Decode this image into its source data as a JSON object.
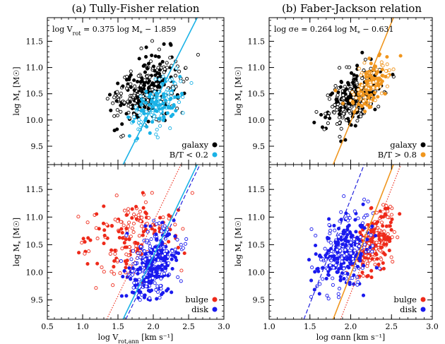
{
  "figure": {
    "panel_a_title": "(a) Tully-Fisher relation",
    "panel_b_title": "(b) Faber-Jackson relation"
  },
  "chart_data": [
    {
      "id": "a-top",
      "type": "scatter",
      "ylabel": "log M* [M☉]",
      "xlim": [
        0.5,
        3.0
      ],
      "ylim": [
        9.15,
        11.95
      ],
      "xticks": [
        "0.5",
        "1.0",
        "1.5",
        "2.0",
        "2.5",
        "3.0"
      ],
      "yticks": [
        "9.5",
        "10.0",
        "10.5",
        "11.0",
        "11.5"
      ],
      "show_xtick_labels": false,
      "annotation": "log V_rot = 0.375 log M* − 1.859",
      "fit": {
        "slope": 0.375,
        "intercept": -1.859,
        "axis": "x_from_y",
        "color": "#1ab2e6",
        "style": "solid"
      },
      "dashed_fits": [],
      "legend": {
        "entries": [
          "galaxy",
          "B/T < 0.2"
        ],
        "colors": [
          "#000000",
          "#1ab2e6"
        ],
        "position": "bottom-right"
      },
      "series": [
        {
          "name": "galaxy",
          "color": "#000000",
          "cluster": {
            "x_mean": 1.9,
            "x_sd": 0.22,
            "slope": 1.9,
            "y_center": 10.55,
            "y_sd": 0.18,
            "y_min": 9.5,
            "y_max": 11.55,
            "n": 300,
            "seed": 11
          }
        },
        {
          "name": "B/T < 0.2",
          "color": "#1ab2e6",
          "cluster": {
            "x_mean": 2.05,
            "x_sd": 0.18,
            "slope": 2.2,
            "y_center": 10.25,
            "y_sd": 0.14,
            "y_min": 9.55,
            "y_max": 11.1,
            "n": 160,
            "seed": 23
          }
        }
      ]
    },
    {
      "id": "b-top",
      "type": "scatter",
      "ylabel": "log M* [M☉]",
      "xlim": [
        1.0,
        3.0
      ],
      "ylim": [
        9.15,
        11.95
      ],
      "xticks": [
        "1.0",
        "1.5",
        "2.0",
        "2.5",
        "3.0"
      ],
      "yticks": [
        "9.5",
        "10.0",
        "10.5",
        "11.0",
        "11.5"
      ],
      "show_xtick_labels": false,
      "annotation": "log σe = 0.264 log M* − 0.631",
      "fit": {
        "slope": 0.264,
        "intercept": -0.631,
        "axis": "x_from_y",
        "color": "#f0961e",
        "style": "solid"
      },
      "dashed_fits": [],
      "legend": {
        "entries": [
          "galaxy",
          "B/T > 0.8"
        ],
        "colors": [
          "#000000",
          "#f0961e"
        ],
        "position": "bottom-right"
      },
      "series": [
        {
          "name": "galaxy",
          "color": "#000000",
          "cluster": {
            "x_mean": 2.05,
            "x_sd": 0.17,
            "slope": 2.8,
            "y_center": 10.45,
            "y_sd": 0.16,
            "y_min": 9.55,
            "y_max": 11.55,
            "n": 300,
            "seed": 37
          }
        },
        {
          "name": "B/T > 0.8",
          "color": "#f0961e",
          "cluster": {
            "x_mean": 2.25,
            "x_sd": 0.13,
            "slope": 3.2,
            "y_center": 10.65,
            "y_sd": 0.13,
            "y_min": 9.9,
            "y_max": 11.45,
            "n": 140,
            "seed": 41
          }
        }
      ]
    },
    {
      "id": "a-bottom",
      "type": "scatter",
      "ylabel": "log M* [M☉]",
      "xlabel": "log V_rot,ann [km s⁻¹]",
      "xlim": [
        0.5,
        3.0
      ],
      "ylim": [
        9.15,
        11.95
      ],
      "xticks": [
        "0.5",
        "1.0",
        "1.5",
        "2.0",
        "2.5",
        "3.0"
      ],
      "yticks": [
        "9.5",
        "10.0",
        "10.5",
        "11.0",
        "11.5"
      ],
      "show_xtick_labels": true,
      "annotation": "",
      "fit": {
        "slope": 0.375,
        "intercept": -1.859,
        "axis": "x_from_y",
        "color": "#1ab2e6",
        "style": "solid"
      },
      "dashed_fits": [
        {
          "slope": 0.375,
          "intercept": -1.82,
          "color": "#2222dd",
          "style": "dashed"
        },
        {
          "slope": 0.375,
          "intercept": -2.09,
          "color": "#ee3322",
          "style": "dotted"
        }
      ],
      "legend": {
        "entries": [
          "bulge",
          "disk"
        ],
        "colors": [
          "#ee2a1a",
          "#1a1aee"
        ],
        "position": "bottom-right"
      },
      "series": [
        {
          "name": "bulge",
          "color": "#ee2a1a",
          "cluster": {
            "x_mean": 1.65,
            "x_sd": 0.33,
            "slope": 0.8,
            "y_center": 10.6,
            "y_sd": 0.22,
            "y_min": 9.7,
            "y_max": 11.45,
            "n": 190,
            "seed": 53
          }
        },
        {
          "name": "disk",
          "color": "#1a1aee",
          "cluster": {
            "x_mean": 2.0,
            "x_sd": 0.17,
            "slope": 2.3,
            "y_center": 10.15,
            "y_sd": 0.18,
            "y_min": 9.5,
            "y_max": 11.2,
            "n": 360,
            "seed": 67
          }
        }
      ]
    },
    {
      "id": "b-bottom",
      "type": "scatter",
      "ylabel": "log M* [M☉]",
      "xlabel": "log σann [km s⁻¹]",
      "xlim": [
        1.0,
        3.0
      ],
      "ylim": [
        9.15,
        11.95
      ],
      "xticks": [
        "1.0",
        "1.5",
        "2.0",
        "2.5",
        "3.0"
      ],
      "yticks": [
        "9.5",
        "10.0",
        "10.5",
        "11.0",
        "11.5"
      ],
      "show_xtick_labels": true,
      "annotation": "",
      "fit": {
        "slope": 0.264,
        "intercept": -0.631,
        "axis": "x_from_y",
        "color": "#f0961e",
        "style": "solid"
      },
      "dashed_fits": [
        {
          "slope": 0.264,
          "intercept": -0.99,
          "color": "#2222dd",
          "style": "dashed"
        },
        {
          "slope": 0.264,
          "intercept": -0.54,
          "color": "#ee3322",
          "style": "dotted"
        }
      ],
      "legend": {
        "entries": [
          "bulge",
          "disk"
        ],
        "colors": [
          "#ee2a1a",
          "#1a1aee"
        ],
        "position": "bottom-right"
      },
      "series": [
        {
          "name": "bulge",
          "color": "#ee2a1a",
          "cluster": {
            "x_mean": 2.3,
            "x_sd": 0.12,
            "slope": 2.4,
            "y_center": 10.55,
            "y_sd": 0.18,
            "y_min": 9.6,
            "y_max": 11.3,
            "n": 230,
            "seed": 71
          }
        },
        {
          "name": "disk",
          "color": "#1a1aee",
          "cluster": {
            "x_mean": 1.9,
            "x_sd": 0.17,
            "slope": 1.8,
            "y_center": 10.35,
            "y_sd": 0.2,
            "y_min": 9.5,
            "y_max": 11.4,
            "n": 320,
            "seed": 89
          }
        }
      ]
    }
  ]
}
